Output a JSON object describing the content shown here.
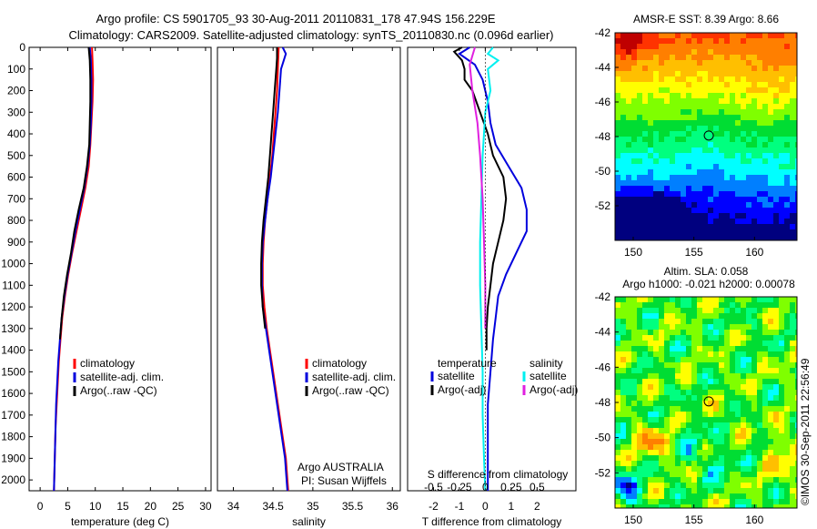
{
  "header": {
    "title_line1": "Argo profile: CS 5901705_93 30-Aug-2011 20110831_178 47.94S 156.229E",
    "title_line2": "Climatology: CARS2009. Satellite-adjusted climatology: synTS_20110830.nc (0.096d earlier)"
  },
  "footer": {
    "credit": "©IMOS 30-Sep-2011 22:56:49"
  },
  "colors": {
    "red": "#ff0000",
    "blue": "#0000dd",
    "black": "#000000",
    "cyan": "#00f0f0",
    "magenta": "#e020e0"
  },
  "chart_data": [
    {
      "type": "line",
      "name": "temperature-profile",
      "xlabel": "temperature (deg C)",
      "ylabel": "",
      "xlim": [
        -2,
        31
      ],
      "ylim": [
        2050,
        0
      ],
      "xticks": [
        0,
        5,
        10,
        15,
        20,
        25,
        30
      ],
      "yticks": [
        0,
        100,
        200,
        300,
        400,
        500,
        600,
        700,
        800,
        900,
        1000,
        1100,
        1200,
        1300,
        1400,
        1500,
        1600,
        1700,
        1800,
        1900,
        2000
      ],
      "legend": [
        {
          "label": "climatology",
          "color": "#ff0000"
        },
        {
          "label": "satellite-adj. clim.",
          "color": "#0000dd"
        },
        {
          "label": "Argo(..raw -QC)",
          "color": "#000000"
        }
      ],
      "series": [
        {
          "color": "#ff0000",
          "points": [
            [
              9.4,
              0
            ],
            [
              9.5,
              60
            ],
            [
              9.6,
              150
            ],
            [
              9.5,
              250
            ],
            [
              9.3,
              350
            ],
            [
              9.1,
              450
            ],
            [
              8.8,
              550
            ],
            [
              8.2,
              650
            ],
            [
              7.4,
              750
            ],
            [
              6.6,
              850
            ],
            [
              5.8,
              950
            ],
            [
              5.1,
              1050
            ],
            [
              4.5,
              1150
            ],
            [
              4.0,
              1250
            ],
            [
              3.7,
              1350
            ],
            [
              3.4,
              1450
            ],
            [
              3.2,
              1550
            ],
            [
              3.0,
              1650
            ],
            [
              2.8,
              1750
            ],
            [
              2.7,
              1850
            ],
            [
              2.6,
              1950
            ],
            [
              2.5,
              2050
            ]
          ]
        },
        {
          "color": "#0000dd",
          "points": [
            [
              9.0,
              0
            ],
            [
              9.2,
              60
            ],
            [
              9.3,
              150
            ],
            [
              9.3,
              250
            ],
            [
              9.2,
              350
            ],
            [
              9.0,
              450
            ],
            [
              8.6,
              550
            ],
            [
              8.0,
              650
            ],
            [
              7.2,
              750
            ],
            [
              6.4,
              850
            ],
            [
              5.7,
              950
            ],
            [
              5.0,
              1050
            ],
            [
              4.4,
              1150
            ],
            [
              3.9,
              1250
            ],
            [
              3.6,
              1350
            ],
            [
              3.3,
              1450
            ],
            [
              3.1,
              1550
            ],
            [
              2.9,
              1650
            ],
            [
              2.8,
              1750
            ],
            [
              2.7,
              1850
            ],
            [
              2.6,
              1950
            ],
            [
              2.5,
              2050
            ]
          ]
        },
        {
          "color": "#000000",
          "points": [
            [
              8.8,
              0
            ],
            [
              9.0,
              60
            ],
            [
              9.1,
              150
            ],
            [
              9.1,
              250
            ],
            [
              9.0,
              350
            ],
            [
              8.9,
              450
            ],
            [
              8.5,
              550
            ],
            [
              7.9,
              650
            ],
            [
              7.0,
              750
            ],
            [
              6.2,
              850
            ],
            [
              5.6,
              950
            ],
            [
              4.9,
              1050
            ],
            [
              4.3,
              1150
            ],
            [
              3.9,
              1250
            ],
            [
              3.6,
              1350
            ]
          ]
        }
      ]
    },
    {
      "type": "line",
      "name": "salinity-profile",
      "xlabel": "salinity",
      "xlim": [
        33.8,
        36.1
      ],
      "ylim": [
        2050,
        0
      ],
      "xticks": [
        34,
        34.5,
        35,
        35.5,
        36
      ],
      "legend": [
        {
          "label": "climatology",
          "color": "#ff0000"
        },
        {
          "label": "satellite-adj. clim.",
          "color": "#0000dd"
        },
        {
          "label": "Argo(..raw -QC)",
          "color": "#000000"
        }
      ],
      "annotation": [
        "Argo AUSTRALIA",
        "PI: Susan Wijffels"
      ],
      "series": [
        {
          "color": "#ff0000",
          "points": [
            [
              34.57,
              0
            ],
            [
              34.56,
              100
            ],
            [
              34.55,
              200
            ],
            [
              34.53,
              300
            ],
            [
              34.51,
              400
            ],
            [
              34.49,
              500
            ],
            [
              34.46,
              600
            ],
            [
              34.43,
              700
            ],
            [
              34.4,
              800
            ],
            [
              34.38,
              900
            ],
            [
              34.37,
              1000
            ],
            [
              34.37,
              1100
            ],
            [
              34.39,
              1200
            ],
            [
              34.42,
              1300
            ],
            [
              34.46,
              1400
            ],
            [
              34.5,
              1500
            ],
            [
              34.54,
              1600
            ],
            [
              34.58,
              1700
            ],
            [
              34.62,
              1800
            ],
            [
              34.66,
              1900
            ],
            [
              34.68,
              2000
            ],
            [
              34.69,
              2050
            ]
          ]
        },
        {
          "color": "#0000dd",
          "points": [
            [
              34.62,
              0
            ],
            [
              34.66,
              30
            ],
            [
              34.6,
              100
            ],
            [
              34.58,
              200
            ],
            [
              34.56,
              300
            ],
            [
              34.53,
              400
            ],
            [
              34.5,
              500
            ],
            [
              34.47,
              600
            ],
            [
              34.43,
              700
            ],
            [
              34.4,
              800
            ],
            [
              34.37,
              900
            ],
            [
              34.36,
              1000
            ],
            [
              34.36,
              1100
            ],
            [
              34.37,
              1200
            ],
            [
              34.41,
              1300
            ],
            [
              34.45,
              1400
            ],
            [
              34.49,
              1500
            ],
            [
              34.53,
              1600
            ],
            [
              34.57,
              1700
            ],
            [
              34.61,
              1800
            ],
            [
              34.65,
              1900
            ],
            [
              34.67,
              2000
            ],
            [
              34.68,
              2050
            ]
          ]
        },
        {
          "color": "#000000",
          "points": [
            [
              34.55,
              0
            ],
            [
              34.55,
              50
            ],
            [
              34.54,
              100
            ],
            [
              34.52,
              200
            ],
            [
              34.5,
              300
            ],
            [
              34.48,
              400
            ],
            [
              34.46,
              500
            ],
            [
              34.44,
              600
            ],
            [
              34.41,
              700
            ],
            [
              34.38,
              800
            ],
            [
              34.36,
              900
            ],
            [
              34.35,
              1000
            ],
            [
              34.35,
              1100
            ],
            [
              34.37,
              1200
            ],
            [
              34.4,
              1300
            ]
          ]
        }
      ]
    },
    {
      "type": "line",
      "name": "difference-profile",
      "xlabel": "T difference from climatology",
      "top_axis_label": "S difference from climatology",
      "xlim": [
        -3,
        3.5
      ],
      "ylim": [
        2050,
        0
      ],
      "xticks": [
        -2,
        -1,
        0,
        1,
        2
      ],
      "s_xticks": [
        "-0.5",
        "-0.25",
        "0",
        "0.25",
        "0.5"
      ],
      "legend_left": {
        "heading": "temperature",
        "items": [
          {
            "label": "satellite",
            "color": "#0000dd"
          },
          {
            "label": "Argo(-adj)",
            "color": "#000000"
          }
        ]
      },
      "legend_right": {
        "heading": "salinity",
        "items": [
          {
            "label": "satellite",
            "color": "#00f0f0"
          },
          {
            "label": "Argo(-adj)",
            "color": "#e020e0"
          }
        ]
      },
      "series": [
        {
          "color": "#0000dd",
          "points": [
            [
              -0.6,
              0
            ],
            [
              -1.0,
              30
            ],
            [
              -0.4,
              80
            ],
            [
              -0.1,
              150
            ],
            [
              0.1,
              250
            ],
            [
              0.2,
              350
            ],
            [
              0.4,
              450
            ],
            [
              0.9,
              550
            ],
            [
              1.4,
              650
            ],
            [
              1.6,
              750
            ],
            [
              1.6,
              850
            ],
            [
              1.2,
              950
            ],
            [
              0.8,
              1050
            ],
            [
              0.5,
              1150
            ],
            [
              0.4,
              1250
            ],
            [
              0.3,
              1350
            ],
            [
              0.2,
              1500
            ],
            [
              0.1,
              1650
            ],
            [
              0.1,
              1800
            ],
            [
              0.1,
              1950
            ],
            [
              0.1,
              2050
            ]
          ]
        },
        {
          "color": "#000000",
          "points": [
            [
              -0.9,
              0
            ],
            [
              -1.2,
              20
            ],
            [
              -0.9,
              60
            ],
            [
              -0.8,
              100
            ],
            [
              -0.8,
              150
            ],
            [
              -0.5,
              200
            ],
            [
              -0.2,
              300
            ],
            [
              0.1,
              400
            ],
            [
              0.3,
              500
            ],
            [
              0.7,
              600
            ],
            [
              0.8,
              700
            ],
            [
              0.7,
              800
            ],
            [
              0.5,
              900
            ],
            [
              0.3,
              1000
            ],
            [
              0.2,
              1100
            ],
            [
              0.1,
              1200
            ],
            [
              0.05,
              1300
            ],
            [
              0.05,
              1400
            ]
          ]
        },
        {
          "color": "#00f0f0",
          "points": [
            [
              0.3,
              0
            ],
            [
              0.1,
              30
            ],
            [
              0.5,
              60
            ],
            [
              0.1,
              100
            ],
            [
              0.2,
              200
            ],
            [
              0.0,
              300
            ],
            [
              -0.1,
              500
            ],
            [
              -0.15,
              700
            ],
            [
              -0.2,
              900
            ],
            [
              -0.2,
              1100
            ],
            [
              -0.15,
              1300
            ],
            [
              -0.1,
              1500
            ],
            [
              -0.1,
              1700
            ],
            [
              -0.05,
              1900
            ],
            [
              0.0,
              2050
            ]
          ]
        },
        {
          "color": "#e020e0",
          "points": [
            [
              -0.4,
              0
            ],
            [
              -0.6,
              80
            ],
            [
              -0.5,
              200
            ],
            [
              -0.3,
              350
            ],
            [
              -0.2,
              500
            ],
            [
              -0.1,
              700
            ],
            [
              -0.05,
              900
            ],
            [
              0.0,
              1100
            ],
            [
              0.0,
              1300
            ]
          ]
        }
      ]
    },
    {
      "type": "heatmap",
      "name": "sst-map",
      "title": "AMSR-E SST: 8.39 Argo: 8.66",
      "xlim": [
        148.5,
        163.5
      ],
      "ylim": [
        -54,
        -42
      ],
      "xticks": [
        150,
        155,
        160
      ],
      "yticks": [
        -42,
        -44,
        -46,
        -48,
        -50,
        -52
      ],
      "marker": [
        156.229,
        -47.94
      ],
      "palette": [
        "#00007f",
        "#0000ff",
        "#007fff",
        "#00ffff",
        "#00ff7f",
        "#00dd33",
        "#7fff00",
        "#ffff00",
        "#ffbf00",
        "#ff7f00",
        "#ff3300",
        "#bf0000"
      ]
    },
    {
      "type": "heatmap",
      "name": "sla-map",
      "title": "Altim. SLA: 0.058",
      "subtitle": "Argo h1000: -0.021 h2000: 0.00078",
      "xlim": [
        148.5,
        163.5
      ],
      "ylim": [
        -54,
        -42
      ],
      "xticks": [
        150,
        155,
        160
      ],
      "yticks": [
        -42,
        -44,
        -46,
        -48,
        -50,
        -52
      ],
      "marker": [
        156.229,
        -47.94
      ],
      "palette": [
        "#00007f",
        "#0000ff",
        "#007fff",
        "#00ffff",
        "#00ff7f",
        "#00dd33",
        "#7fff00",
        "#ffff00",
        "#ffbf00",
        "#ff7f00",
        "#ff3300",
        "#bf0000"
      ]
    }
  ]
}
